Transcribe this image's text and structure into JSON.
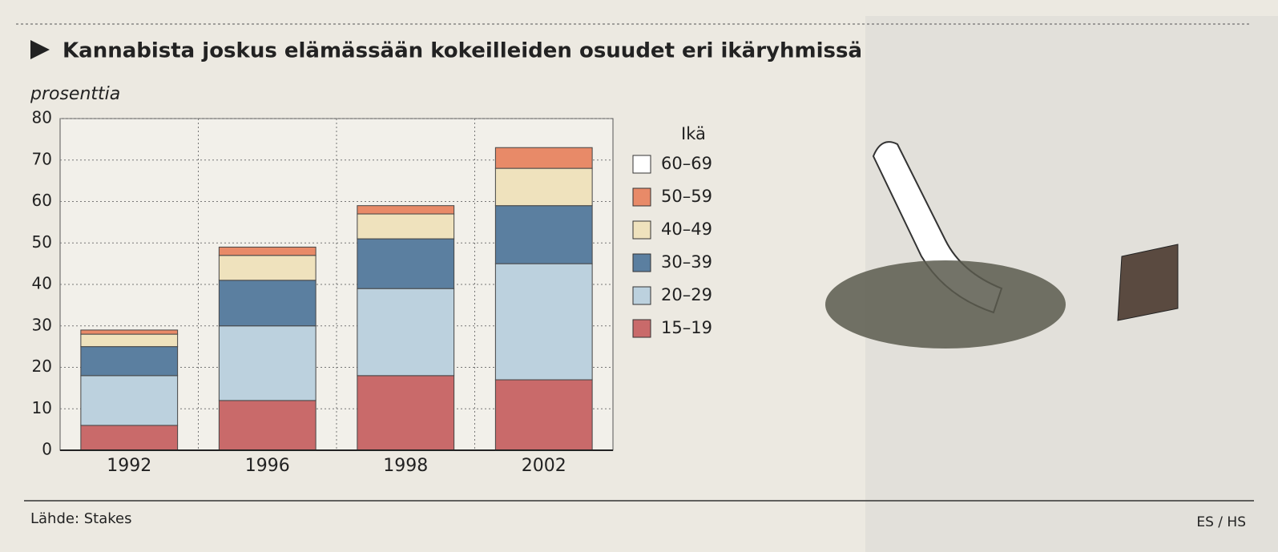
{
  "chart_data": {
    "type": "stacked_bar",
    "title": "Kannabista joskus elämässään kokeilleiden osuudet eri ikäryhmissä",
    "y_label": "prosenttia",
    "legend_title": "Ikä",
    "source": "Lähde: Stakes",
    "credit": "ES / HS",
    "categories": [
      "1992",
      "1996",
      "1998",
      "2002"
    ],
    "series": [
      {
        "name": "15–19",
        "color": "#c96a6a",
        "values": [
          6,
          12,
          18,
          17
        ]
      },
      {
        "name": "20–29",
        "color": "#bcd1de",
        "values": [
          12,
          18,
          21,
          28
        ]
      },
      {
        "name": "30–39",
        "color": "#5b7fa0",
        "values": [
          7,
          11,
          12,
          14
        ]
      },
      {
        "name": "40–49",
        "color": "#efe2bd",
        "values": [
          3,
          6,
          6,
          9
        ]
      },
      {
        "name": "50–59",
        "color": "#e88a68",
        "values": [
          1,
          2,
          2,
          5
        ]
      },
      {
        "name": "60–69",
        "color": "#ffffff",
        "values": [
          0,
          0,
          0,
          0
        ]
      }
    ],
    "ylim": [
      0,
      80
    ],
    "yticks": [
      0,
      10,
      20,
      30,
      40,
      50,
      60,
      70,
      80
    ],
    "grid": true
  }
}
